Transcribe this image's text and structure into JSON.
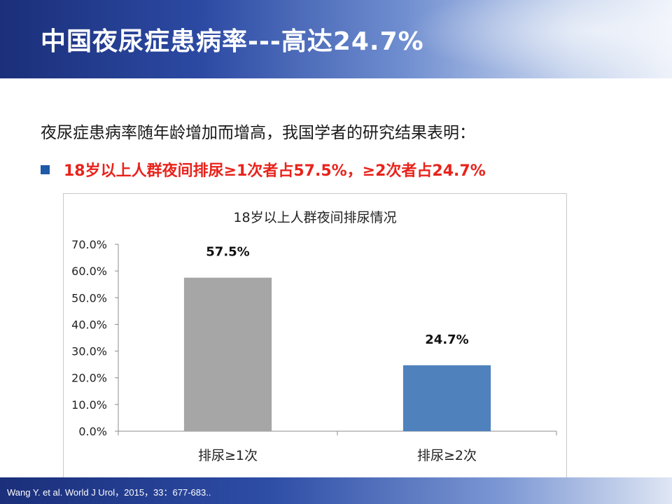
{
  "slide": {
    "title": "中国夜尿症患病率---高达24.7%",
    "intro": "夜尿症患病率随年龄增加而增高，我国学者的研究结果表明：",
    "bullet": "18岁以上人群夜间排尿≥1次者占57.5%，≥2次者占24.7%",
    "citation": "Wang Y. et al. World J Urol，2015，33：677-683.."
  },
  "chart_data": {
    "type": "bar",
    "title": "18岁以上人群夜间排尿情况",
    "categories": [
      "排尿≥1次",
      "排尿≥2次"
    ],
    "values": [
      57.5,
      24.7
    ],
    "data_labels": [
      "57.5%",
      "24.7%"
    ],
    "bar_colors": [
      "#a6a6a6",
      "#4f81bd"
    ],
    "ylim": [
      0,
      70
    ],
    "y_ticks": [
      0,
      10,
      20,
      30,
      40,
      50,
      60,
      70
    ],
    "y_tick_labels": [
      "0.0%",
      "10.0%",
      "20.0%",
      "30.0%",
      "40.0%",
      "50.0%",
      "60.0%",
      "70.0%"
    ],
    "grid": false,
    "legend": "none"
  }
}
